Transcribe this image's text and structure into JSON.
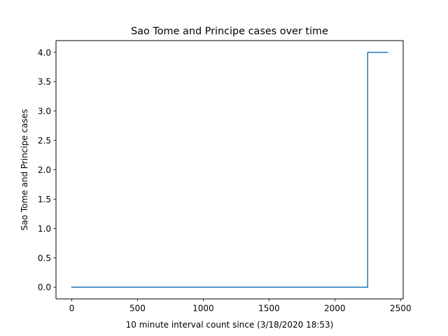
{
  "chart_data": {
    "type": "line",
    "title": "Sao Tome and Principe cases over time",
    "xlabel": "10 minute interval count since (3/18/2020 18:53)",
    "ylabel": "Sao Tome and Principe cases",
    "xlim": [
      -120,
      2520
    ],
    "ylim": [
      -0.2,
      4.2
    ],
    "x_ticks": [
      0,
      500,
      1000,
      1500,
      2000,
      2500
    ],
    "x_tick_labels": [
      "0",
      "500",
      "1000",
      "1500",
      "2000",
      "2500"
    ],
    "y_ticks": [
      0.0,
      0.5,
      1.0,
      1.5,
      2.0,
      2.5,
      3.0,
      3.5,
      4.0
    ],
    "y_tick_labels": [
      "0.0",
      "0.5",
      "1.0",
      "1.5",
      "2.0",
      "2.5",
      "3.0",
      "3.5",
      "4.0"
    ],
    "grid": false,
    "series": [
      {
        "color": "#1f77b4",
        "x": [
          0,
          2250,
          2250,
          2400
        ],
        "y": [
          0,
          0,
          4,
          4
        ]
      }
    ]
  }
}
